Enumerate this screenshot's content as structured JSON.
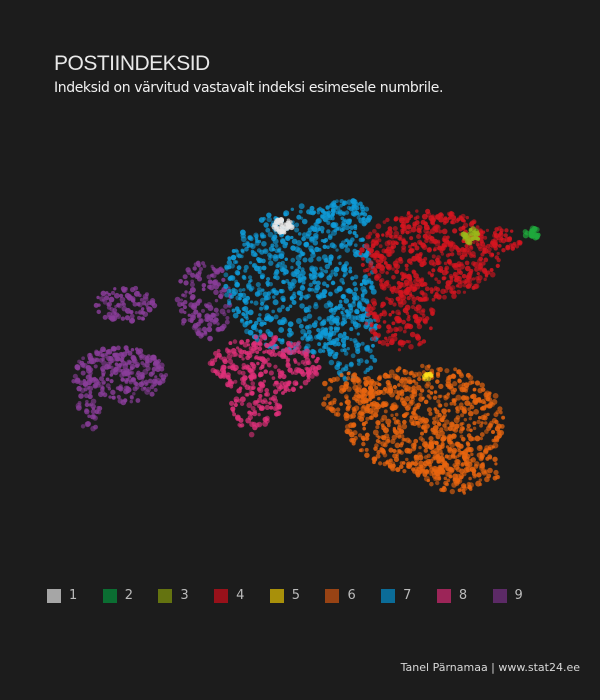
{
  "title": "POSTIINDEKSID",
  "subtitle": "Indeksid on värvitud vastavalt indeksi esimesele numbrile.",
  "legend": [
    {
      "label": "1",
      "color": "#a6a6a6"
    },
    {
      "label": "2",
      "color": "#0b6e32"
    },
    {
      "label": "3",
      "color": "#647310"
    },
    {
      "label": "4",
      "color": "#98111a"
    },
    {
      "label": "5",
      "color": "#a8900a"
    },
    {
      "label": "6",
      "color": "#984314"
    },
    {
      "label": "7",
      "color": "#0b6c98"
    },
    {
      "label": "8",
      "color": "#9c2558"
    },
    {
      "label": "9",
      "color": "#5c2a66"
    }
  ],
  "map_colors": {
    "1": "#e8e8e8",
    "2": "#1fa83c",
    "3": "#9ab81a",
    "4": "#d41520",
    "5": "#ffe01a",
    "6": "#e8650f",
    "7": "#0f9bd8",
    "8": "#e0307a",
    "9": "#8a3d9a"
  },
  "credit": "Tanel Pärnamaa | www.stat24.ee"
}
